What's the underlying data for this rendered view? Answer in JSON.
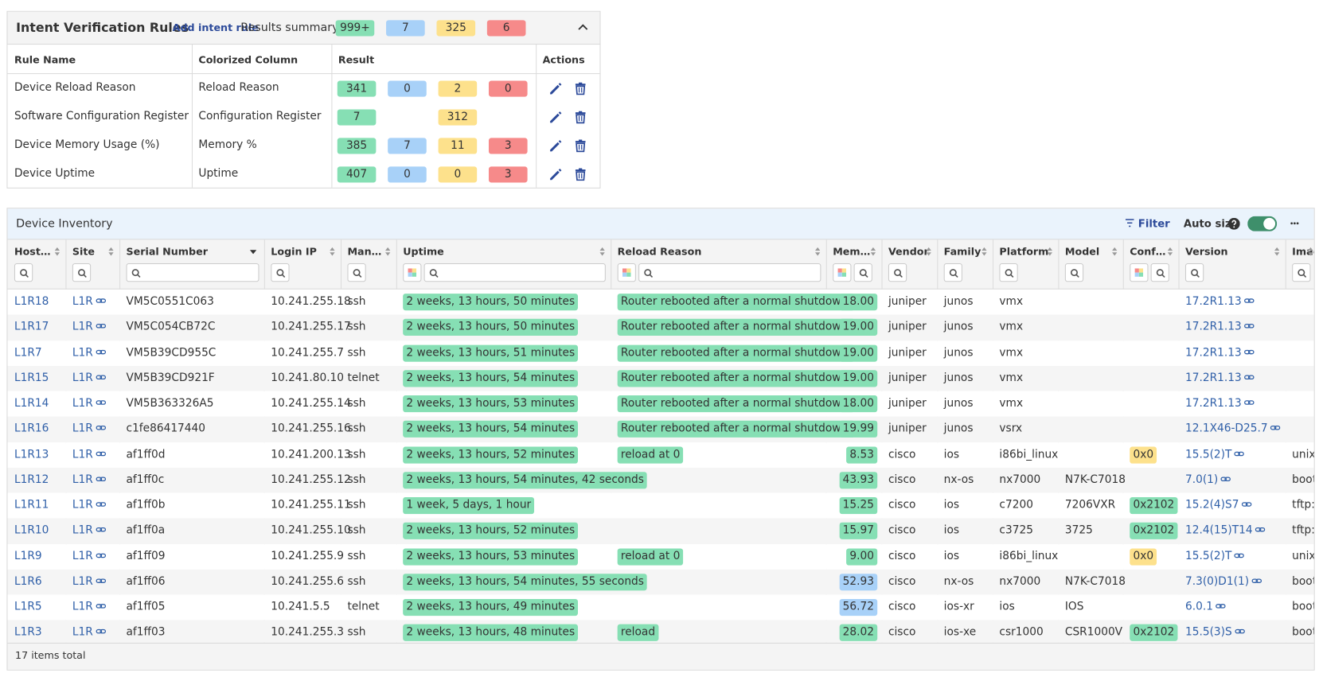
{
  "intent_rules": {
    "title": "Intent Verification Rules",
    "add_rule": "Add intent rule",
    "summary_label": "Results summary:",
    "summary": [
      "999+",
      7,
      325,
      6
    ],
    "status_colors": [
      "#86dfb4",
      "#a8d1f8",
      "#fde18c",
      "#f68a8a"
    ],
    "columns": [
      "Rule Name",
      "Colorized Column",
      "Result",
      "Actions"
    ],
    "rows": [
      {
        "name": "Device Reload Reason",
        "column": "Reload Reason",
        "results": [
          341,
          0,
          2,
          0
        ]
      },
      {
        "name": "Software Configuration Register",
        "column": "Configuration Register",
        "results": [
          7,
          null,
          312,
          null
        ]
      },
      {
        "name": "Device Memory Usage (%)",
        "column": "Memory %",
        "results": [
          385,
          7,
          11,
          3
        ]
      },
      {
        "name": "Device Uptime",
        "column": "Uptime",
        "results": [
          407,
          0,
          0,
          3
        ]
      }
    ]
  },
  "inventory": {
    "title": "Device Inventory",
    "filter": "Filter",
    "auto_size": "Auto size",
    "columns": [
      "Host…",
      "Site",
      "Serial Number",
      "Login IP",
      "Man…",
      "Uptime",
      "Reload Reason",
      "Mem…",
      "Vendor",
      "Family",
      "Platform",
      "Model",
      "Conf…",
      "Version",
      "Image"
    ],
    "rows": [
      {
        "cells": [
          "L1R18",
          "L1R",
          "VM5C0551C063",
          "10.241.255.18",
          "ssh",
          "2 weeks, 13 hours, 50 minutes",
          "Router rebooted after a normal shutdown.",
          "18.00",
          "juniper",
          "junos",
          "vmx",
          null,
          null,
          "17.2R1.13",
          null
        ],
        "memory_color": "#86dfb4"
      },
      {
        "cells": [
          "L1R17",
          "L1R",
          "VM5C054CB72C",
          "10.241.255.17",
          "ssh",
          "2 weeks, 13 hours, 50 minutes",
          "Router rebooted after a normal shutdown.",
          "19.00",
          "juniper",
          "junos",
          "vmx",
          null,
          null,
          "17.2R1.13",
          null
        ],
        "memory_color": "#86dfb4"
      },
      {
        "cells": [
          "L1R7",
          "L1R",
          "VM5B39CD955C",
          "10.241.255.7",
          "ssh",
          "2 weeks, 13 hours, 51 minutes",
          "Router rebooted after a normal shutdown.",
          "19.00",
          "juniper",
          "junos",
          "vmx",
          null,
          null,
          "17.2R1.13",
          null
        ],
        "memory_color": "#86dfb4"
      },
      {
        "cells": [
          "L1R15",
          "L1R",
          "VM5B39CD921F",
          "10.241.80.10",
          "telnet",
          "2 weeks, 13 hours, 54 minutes",
          "Router rebooted after a normal shutdown.",
          "19.00",
          "juniper",
          "junos",
          "vmx",
          null,
          null,
          "17.2R1.13",
          null
        ],
        "memory_color": "#86dfb4"
      },
      {
        "cells": [
          "L1R14",
          "L1R",
          "VM5B363326A5",
          "10.241.255.14",
          "ssh",
          "2 weeks, 13 hours, 53 minutes",
          "Router rebooted after a normal shutdown.",
          "18.00",
          "juniper",
          "junos",
          "vmx",
          null,
          null,
          "17.2R1.13",
          null
        ],
        "memory_color": "#86dfb4"
      },
      {
        "cells": [
          "L1R16",
          "L1R",
          "c1fe86417440",
          "10.241.255.16",
          "ssh",
          "2 weeks, 13 hours, 54 minutes",
          "Router rebooted after a normal shutdown.",
          "19.99",
          "juniper",
          "junos",
          "vsrx",
          null,
          null,
          "12.1X46-D25.7",
          null
        ],
        "memory_color": "#86dfb4"
      },
      {
        "cells": [
          "L1R13",
          "L1R",
          "af1ff0d",
          "10.241.200.13",
          "ssh",
          "2 weeks, 13 hours, 52 minutes",
          "reload at 0",
          "8.53",
          "cisco",
          "ios",
          "i86bi_linux",
          null,
          "0x0",
          "15.5(2)T",
          "unix:"
        ],
        "memory_color": "#86dfb4",
        "config_color": "#fde18c"
      },
      {
        "cells": [
          "L1R12",
          "L1R",
          "af1ff0c",
          "10.241.255.12",
          "ssh",
          "2 weeks, 13 hours, 54 minutes, 42 seconds",
          null,
          "43.93",
          "cisco",
          "nx-os",
          "nx7000",
          "N7K-C7018",
          null,
          "7.0(1)",
          "boot"
        ],
        "memory_color": "#86dfb4"
      },
      {
        "cells": [
          "L1R11",
          "L1R",
          "af1ff0b",
          "10.241.255.11",
          "ssh",
          "1 week, 5 days, 1 hour",
          null,
          "15.25",
          "cisco",
          "ios",
          "c7200",
          "7206VXR",
          "0x2102",
          "15.2(4)S7",
          "tftp:/"
        ],
        "memory_color": "#86dfb4",
        "config_color": "#86dfb4"
      },
      {
        "cells": [
          "L1R10",
          "L1R",
          "af1ff0a",
          "10.241.255.10",
          "ssh",
          "2 weeks, 13 hours, 52 minutes",
          null,
          "15.97",
          "cisco",
          "ios",
          "c3725",
          "3725",
          "0x2102",
          "12.4(15)T14",
          "tftp:/"
        ],
        "memory_color": "#86dfb4",
        "config_color": "#86dfb4"
      },
      {
        "cells": [
          "L1R9",
          "L1R",
          "af1ff09",
          "10.241.255.9",
          "ssh",
          "2 weeks, 13 hours, 53 minutes",
          "reload at 0",
          "9.00",
          "cisco",
          "ios",
          "i86bi_linux",
          null,
          "0x0",
          "15.5(2)T",
          "unix:"
        ],
        "memory_color": "#86dfb4",
        "config_color": "#fde18c"
      },
      {
        "cells": [
          "L1R6",
          "L1R",
          "af1ff06",
          "10.241.255.6",
          "ssh",
          "2 weeks, 13 hours, 54 minutes, 55 seconds",
          null,
          "52.93",
          "cisco",
          "nx-os",
          "nx7000",
          "N7K-C7018",
          null,
          "7.3(0)D1(1)",
          "boot"
        ],
        "memory_color": "#a8d1f8"
      },
      {
        "cells": [
          "L1R5",
          "L1R",
          "af1ff05",
          "10.241.5.5",
          "telnet",
          "2 weeks, 13 hours, 49 minutes",
          null,
          "56.72",
          "cisco",
          "ios-xr",
          "ios",
          "IOS",
          null,
          "6.0.1",
          "boot"
        ],
        "memory_color": "#a8d1f8"
      },
      {
        "cells": [
          "L1R3",
          "L1R",
          "af1ff03",
          "10.241.255.3",
          "ssh",
          "2 weeks, 13 hours, 48 minutes",
          "reload",
          "28.02",
          "cisco",
          "ios-xe",
          "csr1000",
          "CSR1000V",
          "0x2102",
          "15.5(3)S",
          "boot"
        ],
        "memory_color": "#86dfb4",
        "config_color": "#86dfb4"
      }
    ],
    "footer": "17 items total"
  }
}
